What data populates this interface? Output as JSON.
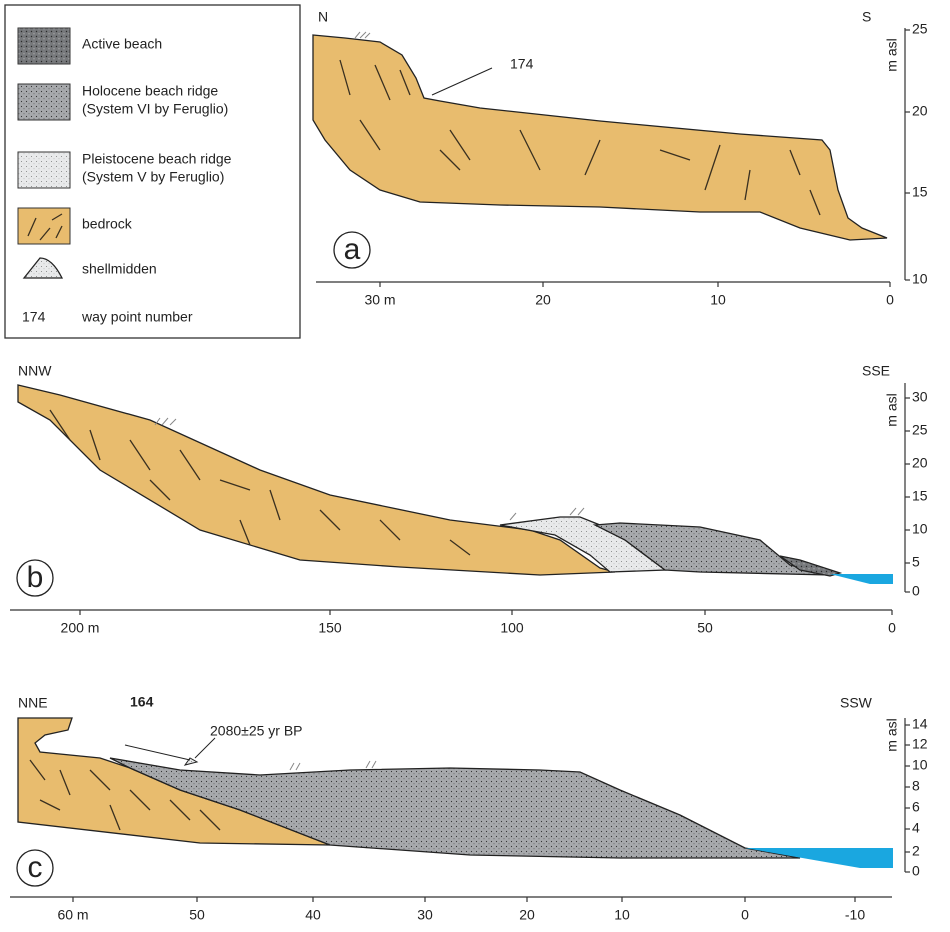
{
  "legend": {
    "items": [
      {
        "lines": [
          "Active beach"
        ]
      },
      {
        "lines": [
          "Holocene beach ridge",
          "(System VI by Feruglio)"
        ]
      },
      {
        "lines": [
          "Pleistocene beach ridge",
          "(System V by Feruglio)"
        ]
      },
      {
        "lines": [
          "bedrock"
        ]
      },
      {
        "lines": [
          "shellmidden"
        ]
      },
      {
        "symbol": "174",
        "lines": [
          "way point number"
        ]
      }
    ]
  },
  "panels": [
    {
      "label": "a",
      "left_direction": "N",
      "right_direction": "S",
      "y_axis_title": "m asl",
      "x_ticks": [
        "30 m",
        "20",
        "10",
        "0"
      ],
      "y_ticks": [
        "25",
        "20",
        "15",
        "10"
      ],
      "annotations": [
        "174"
      ]
    },
    {
      "label": "b",
      "left_direction": "NNW",
      "right_direction": "SSE",
      "y_axis_title": "m asl",
      "x_ticks": [
        "200 m",
        "150",
        "100",
        "50",
        "0"
      ],
      "y_ticks": [
        "30",
        "25",
        "20",
        "15",
        "10",
        "5",
        "0"
      ],
      "annotations": []
    },
    {
      "label": "c",
      "left_direction": "NNE",
      "right_direction": "SSW",
      "y_axis_title": "m asl",
      "x_ticks": [
        "60 m",
        "50",
        "40",
        "30",
        "20",
        "10",
        "0",
        "-10"
      ],
      "y_ticks": [
        "14",
        "12",
        "10",
        "8",
        "6",
        "4",
        "2",
        "0"
      ],
      "annotations": [
        "164",
        "2080±25 yr BP"
      ]
    }
  ]
}
